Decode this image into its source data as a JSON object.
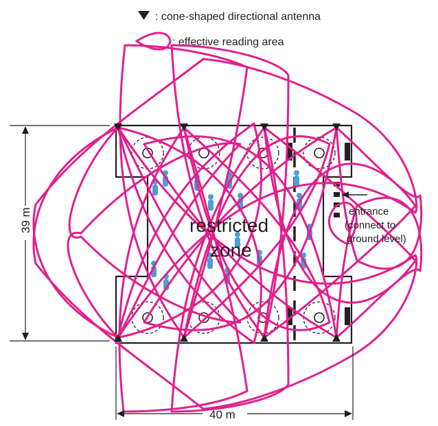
{
  "legend": {
    "antenna_label": ": cone-shaped directional antenna",
    "area_label": ": effective reading area"
  },
  "zone": {
    "line1": "restricted",
    "line2": "zone"
  },
  "entrance": {
    "line1": "entrance",
    "line2": "(connect to",
    "line3": "ground level)"
  },
  "dimensions": {
    "height": "39 m",
    "width": "40 m"
  },
  "colors": {
    "reading_area": "#e0208c",
    "person": "#4a9fd4",
    "ink": "#231f20"
  },
  "icons": {
    "antenna": "black-triangle-icon",
    "reading_area": "teardrop-outline-icon",
    "person": "person-icon"
  }
}
